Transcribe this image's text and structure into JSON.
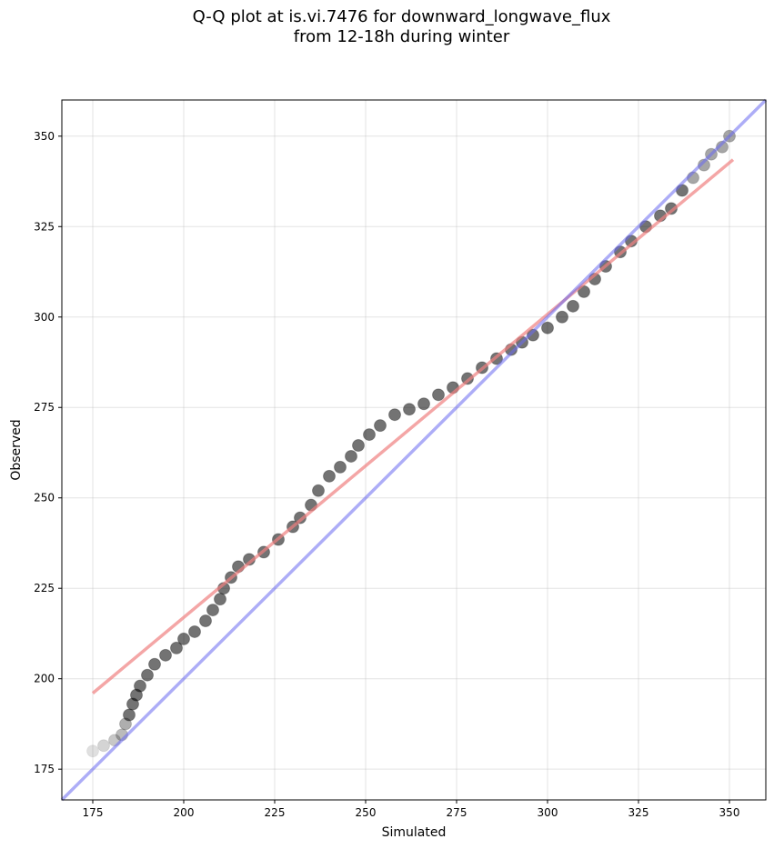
{
  "chart_data": {
    "type": "scatter",
    "title_line1": "Q-Q plot at is.vi.7476 for downward_longwave_flux",
    "title_line2": "from 12-18h during winter",
    "xlabel": "Simulated",
    "ylabel": "Observed",
    "xlim": [
      166.5,
      360
    ],
    "ylim": [
      166.5,
      360
    ],
    "xticks": [
      175,
      200,
      225,
      250,
      275,
      300,
      325,
      350
    ],
    "yticks": [
      175,
      200,
      225,
      250,
      275,
      300,
      325,
      350
    ],
    "grid": true,
    "colors": {
      "points": "#000000",
      "fit_line": "#f08080",
      "one_to_one_line": "#6a6af0"
    },
    "fit_line": {
      "x": [
        175,
        351
      ],
      "y": [
        196,
        343.5
      ]
    },
    "one_to_one_line": {
      "x": [
        166.5,
        360
      ],
      "y": [
        166.5,
        360
      ]
    },
    "quantile_points": [
      [
        175,
        180
      ],
      [
        178,
        181.5
      ],
      [
        181,
        183
      ],
      [
        183,
        184.5
      ],
      [
        184,
        187.5
      ],
      [
        185,
        190
      ],
      [
        186,
        193
      ],
      [
        187,
        195.5
      ],
      [
        188,
        198
      ],
      [
        190,
        201
      ],
      [
        192,
        204
      ],
      [
        195,
        206.5
      ],
      [
        198,
        208.5
      ],
      [
        200,
        211
      ],
      [
        203,
        213
      ],
      [
        206,
        216
      ],
      [
        208,
        219
      ],
      [
        210,
        222
      ],
      [
        211,
        225
      ],
      [
        213,
        228
      ],
      [
        215,
        231
      ],
      [
        218,
        233
      ],
      [
        222,
        235
      ],
      [
        226,
        238.5
      ],
      [
        230,
        242
      ],
      [
        232,
        244.5
      ],
      [
        235,
        248
      ],
      [
        237,
        252
      ],
      [
        240,
        256
      ],
      [
        243,
        258.5
      ],
      [
        246,
        261.5
      ],
      [
        248,
        264.5
      ],
      [
        251,
        267.5
      ],
      [
        254,
        270
      ],
      [
        258,
        273
      ],
      [
        262,
        274.5
      ],
      [
        266,
        276
      ],
      [
        270,
        278.5
      ],
      [
        274,
        280.5
      ],
      [
        278,
        283
      ],
      [
        282,
        286
      ],
      [
        286,
        288.5
      ],
      [
        290,
        291
      ],
      [
        293,
        293
      ],
      [
        296,
        295
      ],
      [
        300,
        297
      ],
      [
        304,
        300
      ],
      [
        307,
        303
      ],
      [
        310,
        307
      ],
      [
        313,
        310.5
      ],
      [
        316,
        314
      ],
      [
        320,
        318
      ],
      [
        323,
        321
      ],
      [
        327,
        325
      ],
      [
        331,
        328
      ],
      [
        334,
        330
      ],
      [
        337,
        335
      ],
      [
        340,
        338.5
      ],
      [
        343,
        342
      ],
      [
        345,
        345
      ],
      [
        348,
        347
      ],
      [
        350,
        350
      ]
    ]
  }
}
